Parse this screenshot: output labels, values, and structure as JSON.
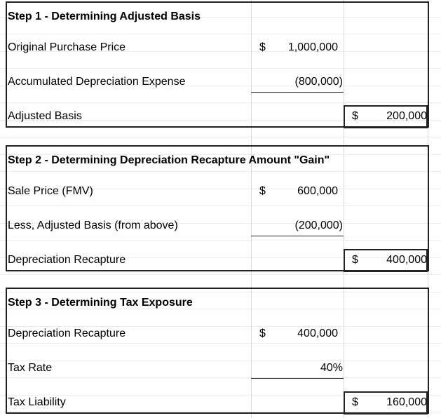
{
  "blocks": [
    {
      "title": "Step 1 - Determining Adjusted Basis",
      "rows": [
        {
          "label": "Original Purchase Price",
          "symbol": "$",
          "value": "1,000,000"
        },
        {
          "label": "Accumulated Depreciation Expense",
          "value": "(800,000)"
        },
        {
          "label": "Adjusted Basis",
          "symbol": "$",
          "value": "200,000"
        }
      ]
    },
    {
      "title": "Step 2 - Determining Depreciation Recapture Amount \"Gain\"",
      "rows": [
        {
          "label": "Sale Price (FMV)",
          "symbol": "$",
          "value": "600,000"
        },
        {
          "label": "Less, Adjusted Basis (from above)",
          "value": "(200,000)"
        },
        {
          "label": "Depreciation Recapture",
          "symbol": "$",
          "value": "400,000"
        }
      ]
    },
    {
      "title": "Step 3 - Determining Tax Exposure",
      "rows": [
        {
          "label": "Depreciation Recapture",
          "symbol": "$",
          "value": "400,000"
        },
        {
          "label": "Tax Rate",
          "value": "40%"
        },
        {
          "label": "Tax Liability",
          "symbol": "$",
          "value": "160,000"
        }
      ]
    }
  ]
}
